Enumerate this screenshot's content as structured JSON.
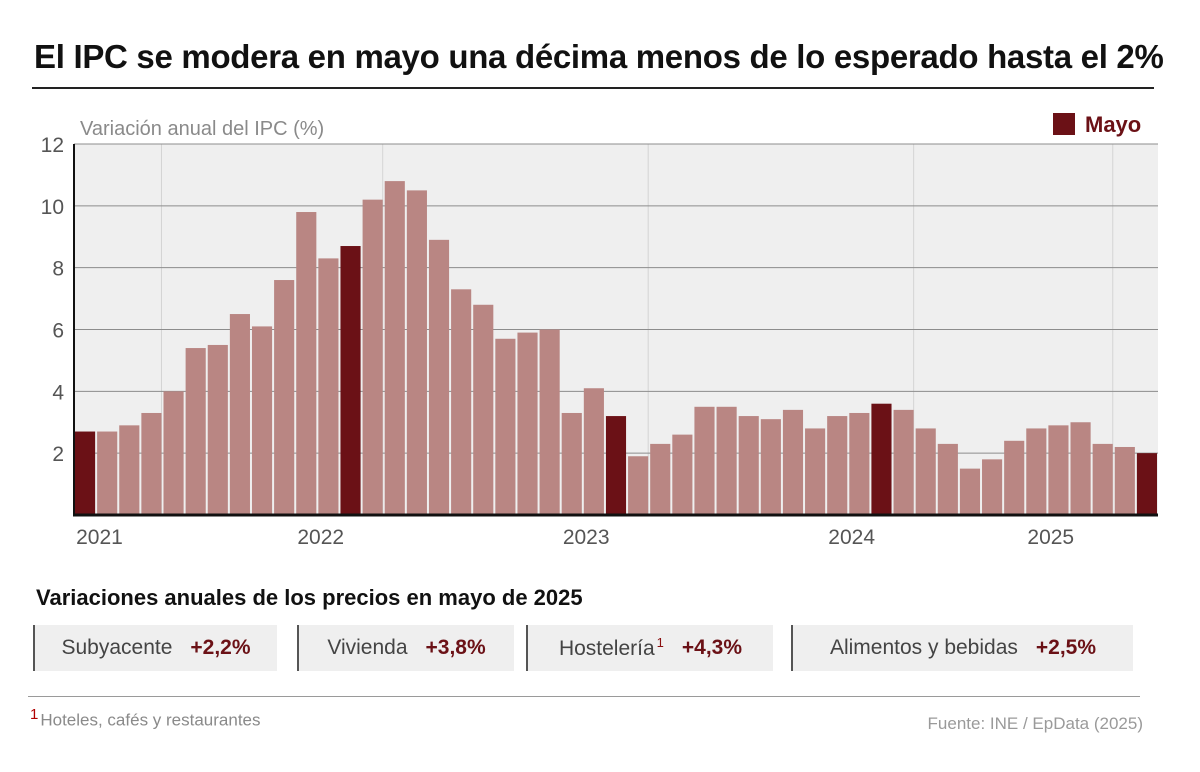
{
  "title": "El IPC se modera en mayo una décima menos de lo esperado hasta el 2%",
  "chart_data": {
    "type": "bar",
    "ylabel": "Variación anual del IPC (%)",
    "ylim": [
      0,
      12
    ],
    "yticks": [
      2,
      4,
      6,
      8,
      10,
      12
    ],
    "grid": true,
    "legend": {
      "position": "top-right",
      "label": "Mayo",
      "color": "#6b1116"
    },
    "colors": {
      "regular": "#b98683",
      "may": "#6b1116"
    },
    "x_labels": [
      "2021",
      "2022",
      "2023",
      "2024",
      "2025"
    ],
    "x_label_after_index": [
      3,
      13,
      25,
      37,
      46
    ],
    "highlight_indices": [
      0,
      12,
      24,
      36,
      48
    ],
    "categories": [
      "may 2021",
      "jun 2021",
      "jul 2021",
      "ago 2021",
      "sep 2021",
      "oct 2021",
      "nov 2021",
      "dic 2021",
      "ene 2022",
      "feb 2022",
      "mar 2022",
      "abr 2022",
      "may 2022",
      "jun 2022",
      "jul 2022",
      "ago 2022",
      "sep 2022",
      "oct 2022",
      "nov 2022",
      "dic 2022",
      "ene 2023",
      "feb 2023",
      "mar 2023",
      "abr 2023",
      "may 2023",
      "jun 2023",
      "jul 2023",
      "ago 2023",
      "sep 2023",
      "oct 2023",
      "nov 2023",
      "dic 2023",
      "ene 2024",
      "feb 2024",
      "mar 2024",
      "abr 2024",
      "may 2024",
      "jun 2024",
      "jul 2024",
      "ago 2024",
      "sep 2024",
      "oct 2024",
      "nov 2024",
      "dic 2024",
      "ene 2025",
      "feb 2025",
      "mar 2025",
      "abr 2025",
      "may 2025"
    ],
    "values": [
      2.7,
      2.7,
      2.9,
      3.3,
      4.0,
      5.4,
      5.5,
      6.5,
      6.1,
      7.6,
      9.8,
      8.3,
      8.7,
      10.2,
      10.8,
      10.5,
      8.9,
      7.3,
      6.8,
      5.7,
      5.9,
      6.0,
      3.3,
      4.1,
      3.2,
      1.9,
      2.3,
      2.6,
      3.5,
      3.5,
      3.2,
      3.1,
      3.4,
      2.8,
      3.2,
      3.3,
      3.6,
      3.4,
      2.8,
      2.3,
      1.5,
      1.8,
      2.4,
      2.8,
      2.9,
      3.0,
      2.3,
      2.2,
      2.0
    ]
  },
  "subtitle": "Variaciones anuales de los precios en mayo de 2025",
  "cards": [
    {
      "label": "Subyacente",
      "value": "+2,2%"
    },
    {
      "label": "Vivienda",
      "value": "+3,8%"
    },
    {
      "label": "Hostelería",
      "sup": "1",
      "value": "+4,3%"
    },
    {
      "label": "Alimentos y bebidas",
      "value": "+2,5%"
    }
  ],
  "footnote": {
    "mark": "1",
    "text": "Hoteles, cafés y restaurantes"
  },
  "source": "Fuente: INE / EpData (2025)"
}
